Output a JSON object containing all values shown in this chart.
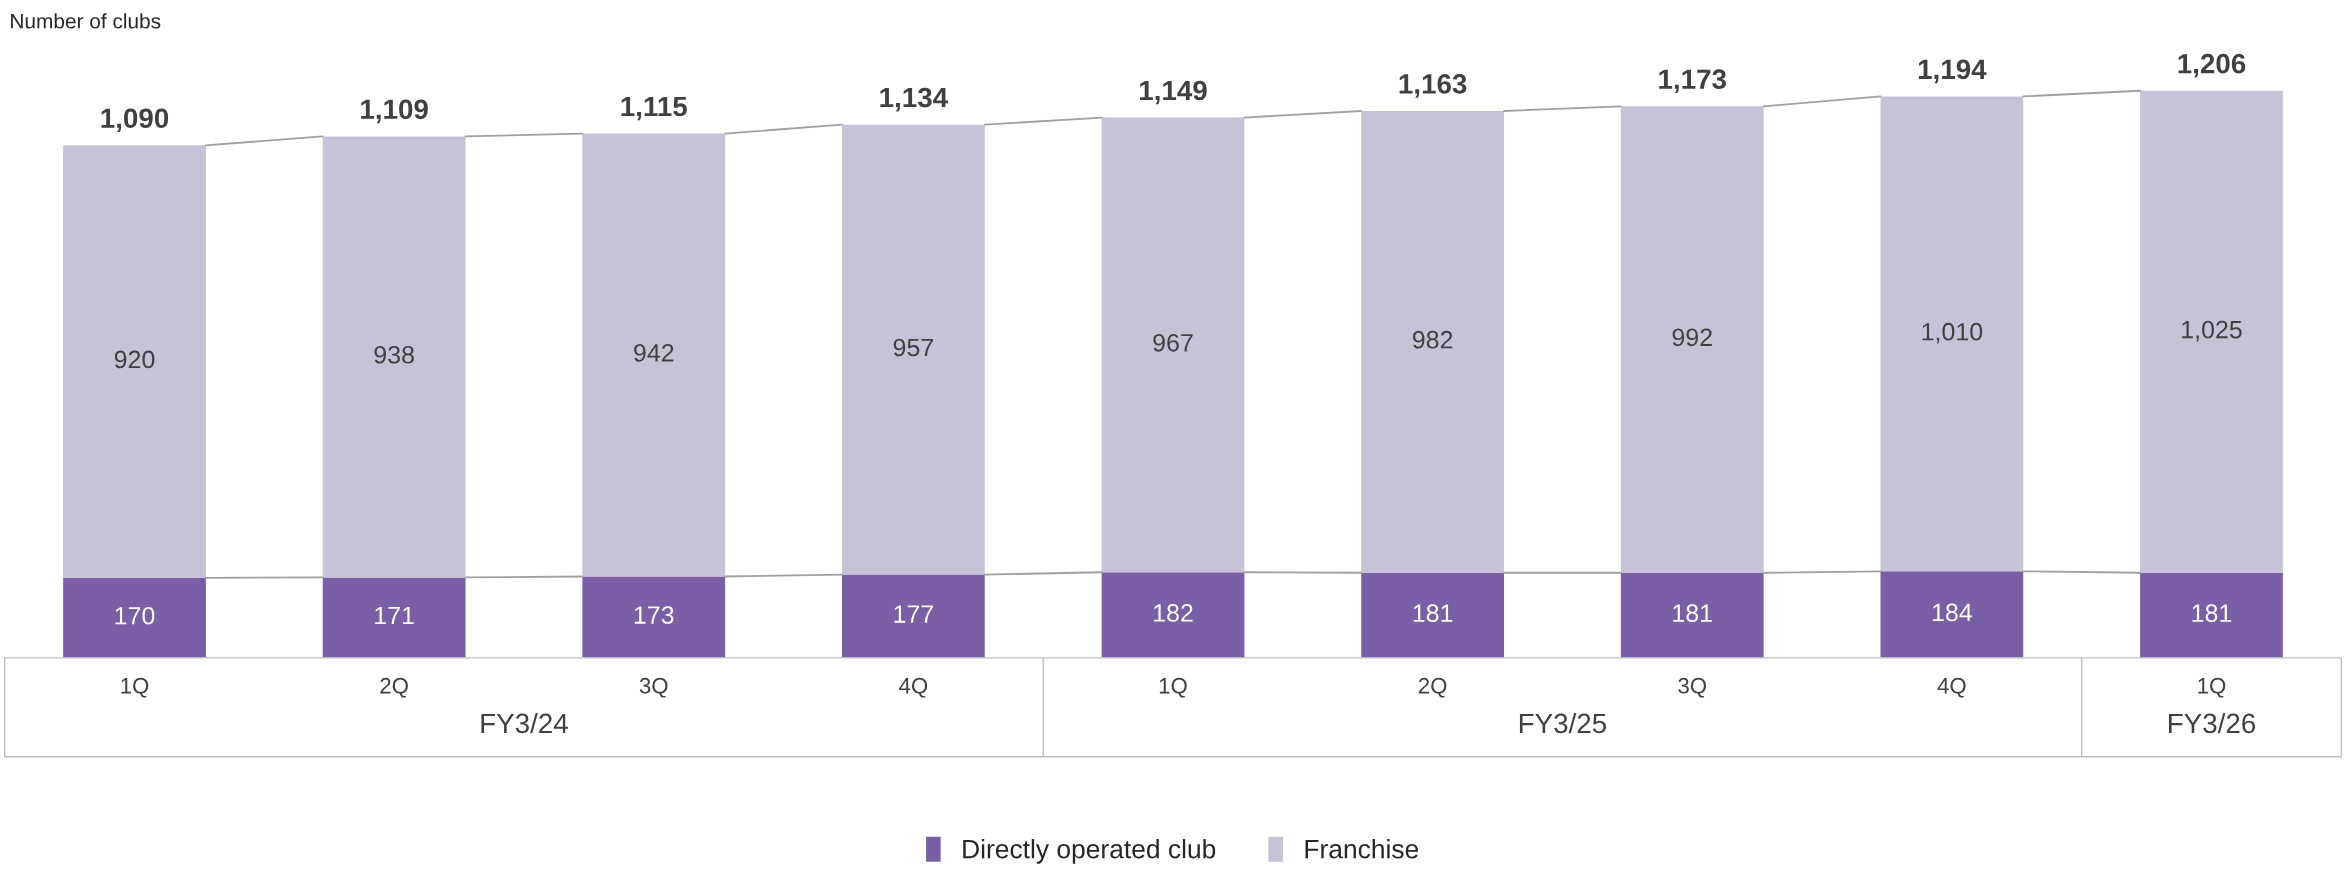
{
  "chart_data": {
    "type": "bar",
    "stacked": true,
    "ylabel": "Number of clubs",
    "categories": [
      "1Q",
      "2Q",
      "3Q",
      "4Q",
      "1Q",
      "2Q",
      "3Q",
      "4Q",
      "1Q"
    ],
    "series": [
      {
        "name": "Directly operated club",
        "color": "#7b5fa6",
        "values": [
          170,
          171,
          173,
          177,
          182,
          181,
          181,
          184,
          181
        ],
        "value_labels": [
          "170",
          "171",
          "173",
          "177",
          "182",
          "181",
          "181",
          "184",
          "181"
        ]
      },
      {
        "name": "Franchise",
        "color": "#c7c2d8",
        "values": [
          920,
          938,
          942,
          957,
          967,
          982,
          992,
          1010,
          1025
        ],
        "value_labels": [
          "920",
          "938",
          "942",
          "957",
          "967",
          "982",
          "992",
          "1,010",
          "1,025"
        ]
      }
    ],
    "totals": [
      "1,090",
      "1,109",
      "1,115",
      "1,134",
      "1,149",
      "1,163",
      "1,173",
      "1,194",
      "1,206"
    ],
    "annotations": [
      "FY3/24",
      "FY3/25",
      "FY3/26"
    ],
    "legend": "bottom",
    "grid": false
  }
}
